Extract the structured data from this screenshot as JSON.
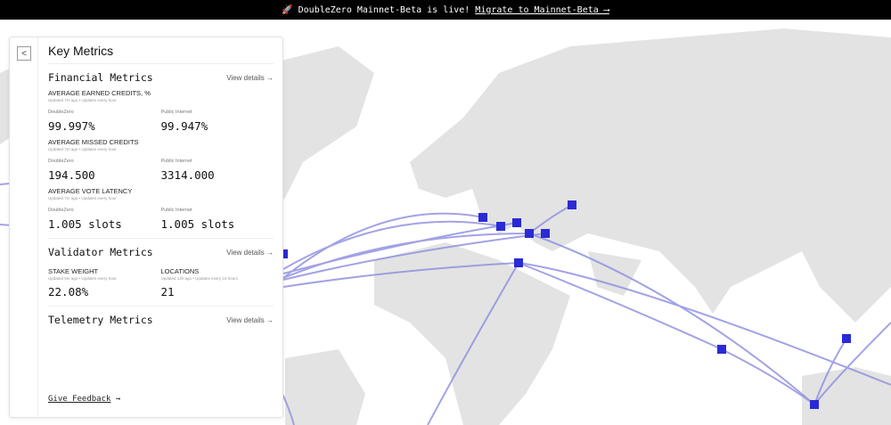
{
  "banner": {
    "icon": "rocket-icon",
    "text": "DoubleZero Mainnet-Beta is live!",
    "link": "Migrate to Mainnet-Beta ⟶"
  },
  "colors": {
    "land": "#e3e3e3",
    "arc": "#8c8ce0",
    "node": "#2a2ad6"
  },
  "panel": {
    "title": "Key Metrics",
    "financial": {
      "heading": "Financial Metrics",
      "view": "View details →",
      "earned": {
        "label": "AVERAGE EARNED CREDITS, %",
        "updated": "Updated 7m ago • Updates every hour",
        "dz_label": "DoubleZero",
        "dz": "99.997%",
        "pi_label": "Public Internet",
        "pi": "99.947%"
      },
      "missed": {
        "label": "AVERAGE MISSED CREDITS",
        "updated": "Updated 7m ago • Updates every hour",
        "dz_label": "DoubleZero",
        "dz": "194.500",
        "pi_label": "Public Internet",
        "pi": "3314.000"
      },
      "latency": {
        "label": "AVERAGE VOTE LATENCY",
        "updated": "Updated 7m ago • Updates every hour",
        "dz_label": "DoubleZero",
        "dz": "1.005 slots",
        "pi_label": "Public Internet",
        "pi": "1.005 slots"
      }
    },
    "validator": {
      "heading": "Validator Metrics",
      "view": "View details →",
      "stake": {
        "label": "STAKE WEIGHT",
        "updated": "Updated 9m ago • Updates every hour",
        "value": "22.08%"
      },
      "locations": {
        "label": "LOCATIONS",
        "updated": "Updated 12h ago • Updates every 24 hours",
        "value": "21"
      }
    },
    "telemetry": {
      "heading": "Telemetry Metrics",
      "view": "View details →"
    },
    "feedback": "Give Feedback",
    "feedback_arrow": "→"
  }
}
